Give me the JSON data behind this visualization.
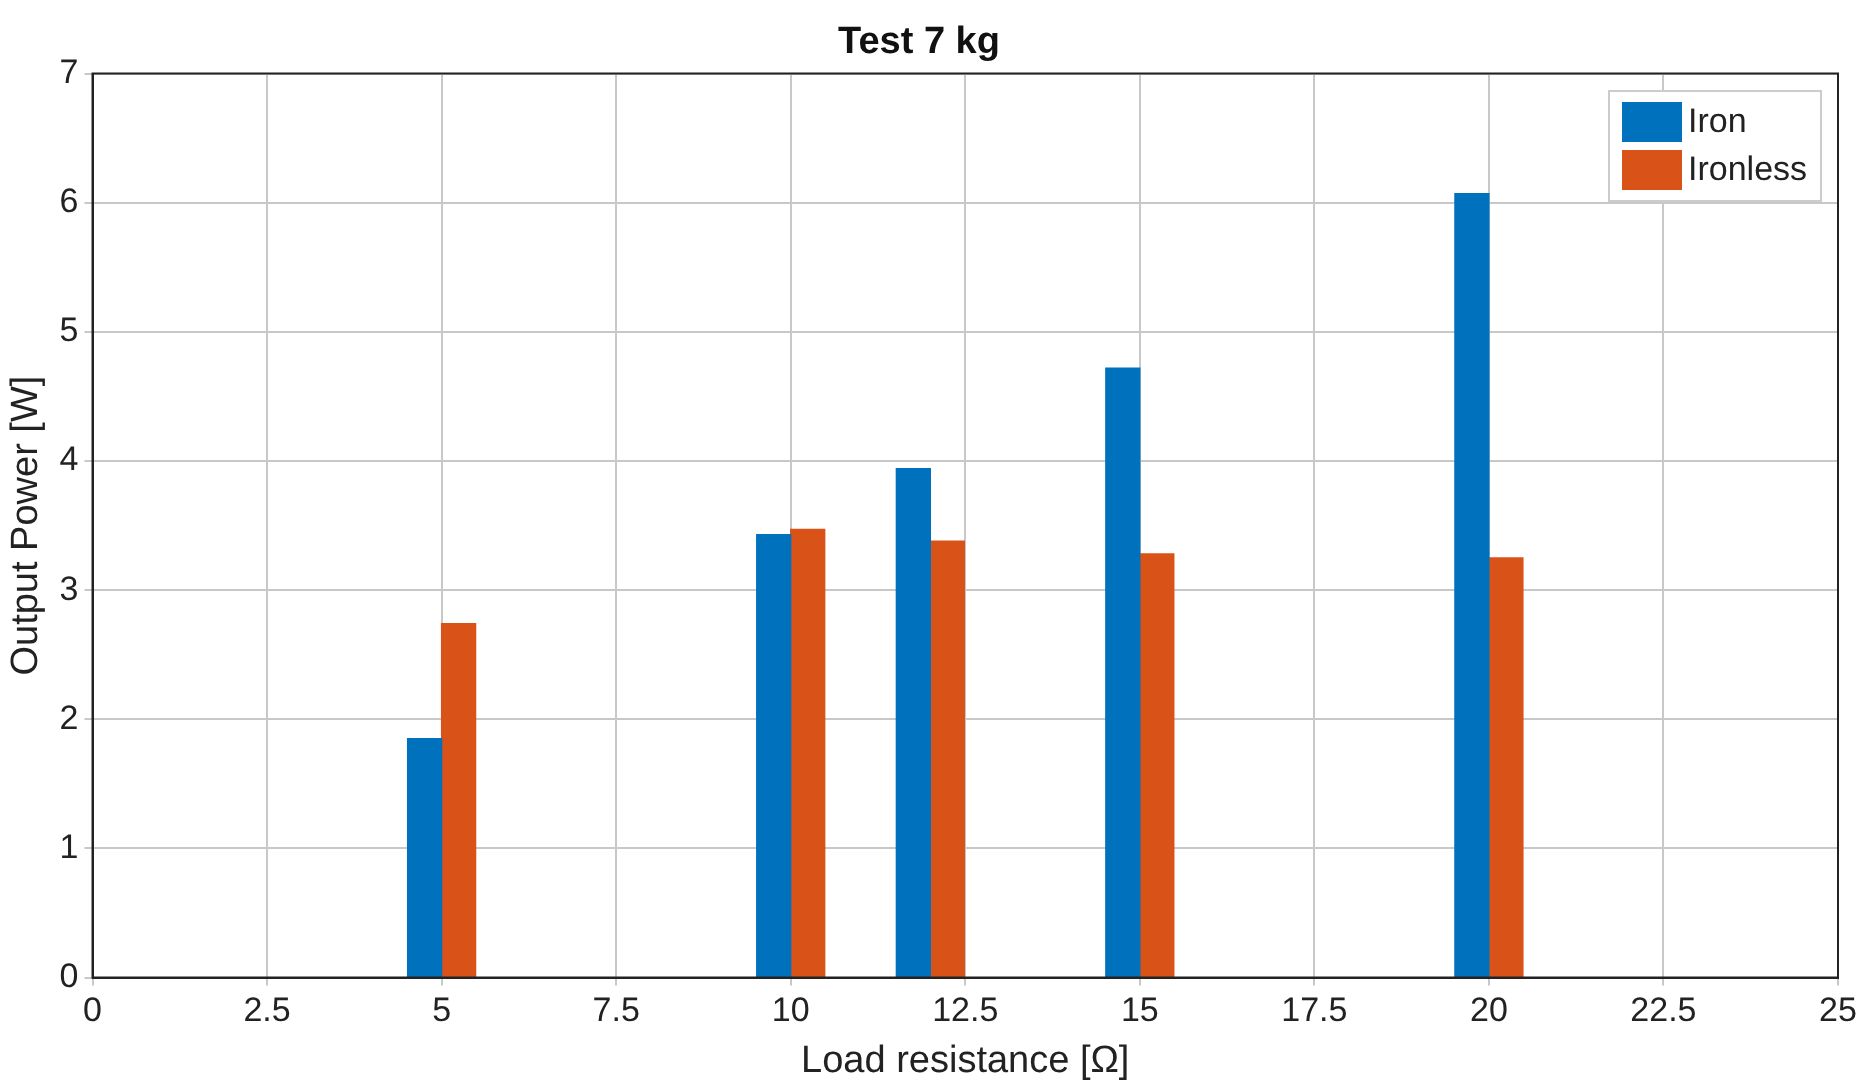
{
  "chart_data": {
    "type": "bar",
    "title": "Test 7 kg",
    "xlabel": "Load resistance [Ω]",
    "ylabel": "Output Power [W]",
    "x": [
      5,
      10,
      12,
      15,
      20
    ],
    "series": [
      {
        "name": "Iron",
        "color": "#0072bd",
        "values": [
          1.85,
          3.43,
          3.94,
          4.72,
          6.07
        ]
      },
      {
        "name": "Ironless",
        "color": "#d95319",
        "values": [
          2.74,
          3.47,
          3.38,
          3.28,
          3.25
        ]
      }
    ],
    "xlim": [
      0,
      25
    ],
    "xticks": [
      0,
      2.5,
      5,
      7.5,
      10,
      12.5,
      15,
      17.5,
      20,
      22.5,
      25
    ],
    "ylim": [
      0,
      7
    ],
    "yticks": [
      0,
      1,
      2,
      3,
      4,
      5,
      6,
      7
    ],
    "grid": true,
    "legend": "top right"
  }
}
